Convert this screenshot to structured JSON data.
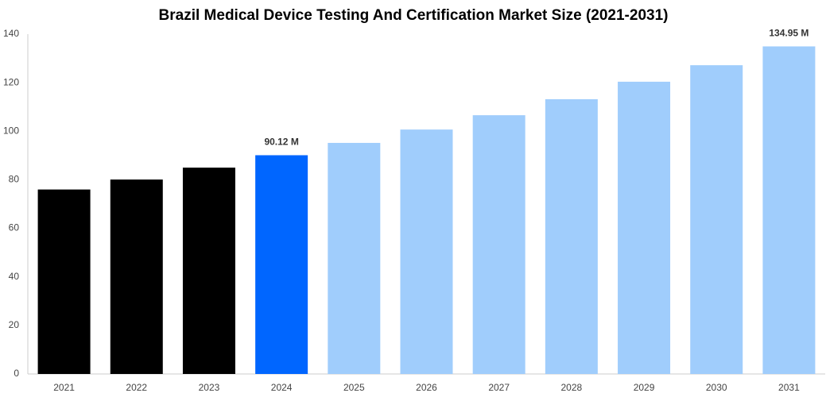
{
  "chart_data": {
    "type": "bar",
    "title": "Brazil Medical Device Testing And Certification Market Size (2021-2031)",
    "categories": [
      "2021",
      "2022",
      "2023",
      "2024",
      "2025",
      "2026",
      "2027",
      "2028",
      "2029",
      "2030",
      "2031"
    ],
    "values": [
      76,
      80.1,
      85,
      90.12,
      95.2,
      100.7,
      106.6,
      113.2,
      120.4,
      127.2,
      134.95
    ],
    "value_labels": [
      null,
      null,
      null,
      "90.12 M",
      null,
      null,
      null,
      null,
      null,
      null,
      "134.95 M"
    ],
    "colors": [
      "#000000",
      "#000000",
      "#000000",
      "#0066ff",
      "#a0cdfc",
      "#a0cdfc",
      "#a0cdfc",
      "#a0cdfc",
      "#a0cdfc",
      "#a0cdfc",
      "#a0cdfc"
    ],
    "ylim": [
      0,
      140
    ],
    "yticks": [
      0,
      20,
      40,
      60,
      80,
      100,
      120,
      140
    ],
    "grid": false
  }
}
